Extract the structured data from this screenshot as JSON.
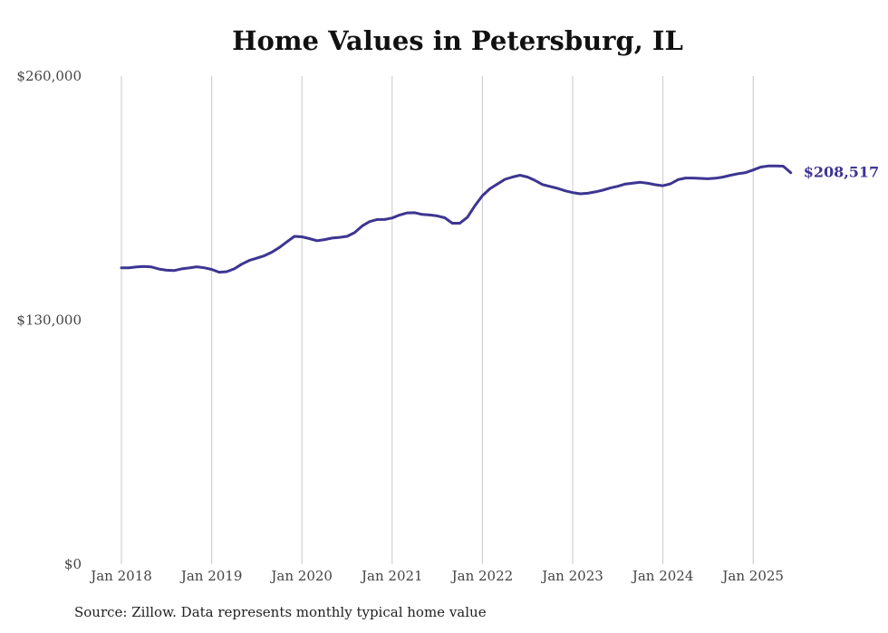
{
  "chart_data": {
    "type": "line",
    "title": "Home Values in Petersburg, IL",
    "xlabel": "",
    "ylabel": "",
    "x_tick_labels": [
      "Jan 2018",
      "Jan 2019",
      "Jan 2020",
      "Jan 2021",
      "Jan 2022",
      "Jan 2023",
      "Jan 2024",
      "Jan 2025"
    ],
    "y_tick_labels": [
      "$260,000",
      "$130,000",
      "$0"
    ],
    "ylim": [
      0,
      260000
    ],
    "xlim": [
      "2018-01",
      "2025-06"
    ],
    "grid": "vertical",
    "line_color": "#3d3592",
    "end_label": "$208,517",
    "x": [
      "2018-01",
      "2018-02",
      "2018-03",
      "2018-04",
      "2018-05",
      "2018-06",
      "2018-07",
      "2018-08",
      "2018-09",
      "2018-10",
      "2018-11",
      "2018-12",
      "2019-01",
      "2019-02",
      "2019-03",
      "2019-04",
      "2019-05",
      "2019-06",
      "2019-07",
      "2019-08",
      "2019-09",
      "2019-10",
      "2019-11",
      "2019-12",
      "2020-01",
      "2020-02",
      "2020-03",
      "2020-04",
      "2020-05",
      "2020-06",
      "2020-07",
      "2020-08",
      "2020-09",
      "2020-10",
      "2020-11",
      "2020-12",
      "2021-01",
      "2021-02",
      "2021-03",
      "2021-04",
      "2021-05",
      "2021-06",
      "2021-07",
      "2021-08",
      "2021-09",
      "2021-10",
      "2021-11",
      "2021-12",
      "2022-01",
      "2022-02",
      "2022-03",
      "2022-04",
      "2022-05",
      "2022-06",
      "2022-07",
      "2022-08",
      "2022-09",
      "2022-10",
      "2022-11",
      "2022-12",
      "2023-01",
      "2023-02",
      "2023-03",
      "2023-04",
      "2023-05",
      "2023-06",
      "2023-07",
      "2023-08",
      "2023-09",
      "2023-10",
      "2023-11",
      "2023-12",
      "2024-01",
      "2024-02",
      "2024-03",
      "2024-04",
      "2024-05",
      "2024-06",
      "2024-07",
      "2024-08",
      "2024-09",
      "2024-10",
      "2024-11",
      "2024-12",
      "2025-01",
      "2025-02",
      "2025-03",
      "2025-04",
      "2025-05",
      "2025-06"
    ],
    "series": [
      {
        "values": [
          157900,
          157900,
          158300,
          158600,
          158300,
          157200,
          156600,
          156400,
          157300,
          157800,
          158400,
          157900,
          157000,
          155500,
          155800,
          157300,
          159800,
          161800,
          163000,
          164300,
          166200,
          168700,
          171700,
          174600,
          174400,
          173400,
          172300,
          172900,
          173700,
          174100,
          174600,
          176600,
          180100,
          182500,
          183600,
          183600,
          184400,
          186000,
          187100,
          187200,
          186300,
          186000,
          185500,
          184500,
          181600,
          181600,
          184800,
          190900,
          196300,
          200000,
          202500,
          205000,
          206200,
          207200,
          206200,
          204400,
          202200,
          201200,
          200200,
          198900,
          197900,
          197300,
          197600,
          198300,
          199200,
          200400,
          201300,
          202500,
          203000,
          203400,
          202900,
          202100,
          201600,
          202600,
          204800,
          205700,
          205700,
          205500,
          205300,
          205600,
          206200,
          207200,
          208000,
          208600,
          210000,
          211500,
          212100,
          212100,
          212000,
          208517
        ]
      }
    ]
  },
  "source_note": "Source: Zillow. Data represents monthly typical home value"
}
